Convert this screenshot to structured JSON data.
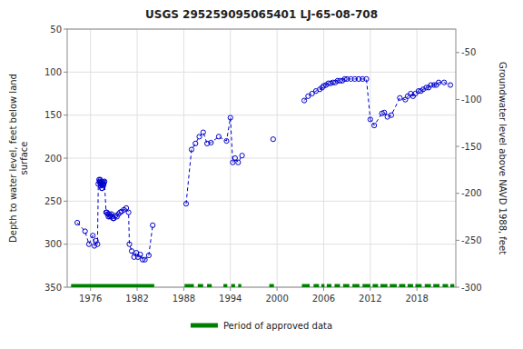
{
  "chart_data": {
    "type": "line",
    "title": "USGS 295259095065401 LJ-65-08-708",
    "ylabel": "Depth to water level, feet below land\nsurface",
    "y2label": "Groundwater level above NAVD 1988, feet",
    "xlim": [
      1973,
      2023
    ],
    "ylim": [
      350,
      50
    ],
    "y2lim": [
      -300,
      -25
    ],
    "xticks": [
      1976,
      1982,
      1988,
      1994,
      2000,
      2006,
      2012,
      2018
    ],
    "yticks": [
      50,
      100,
      150,
      200,
      250,
      300,
      350
    ],
    "y2ticks": [
      -50,
      -100,
      -150,
      -200,
      -250,
      -300
    ],
    "grid": true,
    "legend": "lower center",
    "series": [
      {
        "color": "#0000cc",
        "marker": "circle",
        "line_style": "dashed",
        "x": [
          1974.3,
          1975.3,
          1975.8,
          1976.3,
          1976.5,
          1976.7,
          1976.9,
          1977.0,
          1977.1,
          1977.15,
          1977.2,
          1977.25,
          1977.3,
          1977.35,
          1977.4,
          1977.45,
          1977.5,
          1977.55,
          1977.6,
          1977.65,
          1977.7,
          1977.75,
          1977.8,
          1978.0,
          1978.1,
          1978.2,
          1978.3,
          1978.4,
          1978.5,
          1978.6,
          1978.7,
          1978.8,
          1978.9,
          1979.0,
          1979.2,
          1979.4,
          1979.6,
          1979.8,
          1980.0,
          1980.3,
          1980.6,
          1980.9,
          1981.0,
          1981.3,
          1981.6,
          1981.9,
          1982.1,
          1982.4,
          1982.7,
          1983.0,
          1983.5,
          1984.0
        ],
        "values": [
          275,
          285,
          300,
          290,
          302,
          296,
          300,
          230,
          225,
          228,
          227,
          225,
          232,
          228,
          230,
          235,
          235,
          230,
          228,
          232,
          230,
          228,
          227,
          263,
          263,
          265,
          268,
          265,
          268,
          267,
          265,
          268,
          270,
          270,
          267,
          268,
          265,
          263,
          262,
          260,
          258,
          263,
          300,
          308,
          315,
          310,
          315,
          312,
          318,
          318,
          313,
          278
        ]
      },
      {
        "color": "#0000cc",
        "marker": "circle",
        "line_style": "dashed",
        "x": [
          1988.3,
          1989.0,
          1989.5,
          1990.0,
          1990.5,
          1991.0,
          1991.5,
          1992.5,
          1993.5,
          1994.0,
          1994.3,
          1994.6,
          1995.0,
          1995.5
        ],
        "values": [
          253,
          190,
          183,
          175,
          170,
          183,
          182,
          175,
          180,
          153,
          205,
          200,
          205,
          197
        ]
      },
      {
        "color": "#0000cc",
        "marker": "circle",
        "line_style": "dashed",
        "x": [
          1999.5
        ],
        "values": [
          178
        ]
      },
      {
        "color": "#0000cc",
        "marker": "circle",
        "line_style": "dashed",
        "x": [
          2003.5,
          2004.0,
          2004.5,
          2005.0,
          2005.5,
          2005.8,
          2006.0,
          2006.3,
          2006.6,
          2006.9,
          2007.2,
          2007.5,
          2007.8,
          2008.1,
          2008.4,
          2008.7,
          2009.0,
          2009.5,
          2010.0,
          2010.5,
          2011.0,
          2011.5,
          2012.0,
          2012.5,
          2013.5,
          2013.8,
          2014.2,
          2014.7,
          2015.8,
          2016.5,
          2016.8,
          2017.2,
          2017.5,
          2017.8,
          2018.2,
          2018.5,
          2018.8,
          2019.2,
          2019.5,
          2019.8,
          2020.2,
          2020.5,
          2020.8,
          2021.5,
          2022.3
        ],
        "values": [
          133,
          128,
          125,
          122,
          120,
          118,
          116,
          115,
          113,
          113,
          112,
          112,
          110,
          110,
          110,
          108,
          108,
          108,
          108,
          108,
          108,
          108,
          155,
          162,
          148,
          147,
          152,
          150,
          130,
          132,
          128,
          125,
          128,
          125,
          122,
          122,
          120,
          118,
          118,
          115,
          115,
          115,
          112,
          112,
          115
        ]
      }
    ],
    "approved_periods": {
      "name": "Period of approved data",
      "color": "#008000",
      "y": 350,
      "ranges": [
        [
          1973.5,
          1984.2
        ],
        [
          1988.1,
          1989.3
        ],
        [
          1989.8,
          1990.5
        ],
        [
          1991.0,
          1991.6
        ],
        [
          1993.1,
          1993.6
        ],
        [
          1994.1,
          1994.6
        ],
        [
          1995.0,
          1995.4
        ],
        [
          1999.0,
          1999.6
        ],
        [
          2003.2,
          2004.2
        ],
        [
          2004.7,
          2005.4
        ],
        [
          2005.7,
          2006.1
        ],
        [
          2006.4,
          2007.0
        ],
        [
          2007.4,
          2008.1
        ],
        [
          2008.5,
          2009.3
        ],
        [
          2009.7,
          2010.6
        ],
        [
          2011.0,
          2012.0
        ],
        [
          2012.3,
          2013.0
        ],
        [
          2013.3,
          2014.2
        ],
        [
          2014.5,
          2015.4
        ],
        [
          2015.7,
          2016.5
        ],
        [
          2016.8,
          2017.5
        ],
        [
          2017.8,
          2018.6
        ],
        [
          2019.0,
          2019.8
        ],
        [
          2020.1,
          2020.9
        ],
        [
          2021.3,
          2022.0
        ],
        [
          2022.3,
          2022.8
        ]
      ]
    }
  }
}
